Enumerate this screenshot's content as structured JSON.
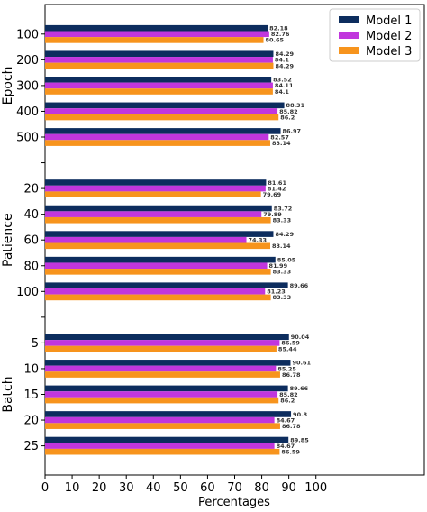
{
  "chart_data": {
    "type": "bar",
    "orientation": "horizontal",
    "xlabel": "Percentages",
    "xlim": [
      0,
      140
    ],
    "xticks": [
      0,
      10,
      20,
      30,
      40,
      50,
      60,
      70,
      80,
      90,
      100
    ],
    "legend": {
      "position": "top-right"
    },
    "series": [
      {
        "name": "Model 1",
        "color": "#0d2d5e"
      },
      {
        "name": "Model 2",
        "color": "#c136dd"
      },
      {
        "name": "Model 3",
        "color": "#f7941d"
      }
    ],
    "groups": [
      {
        "label": "Epoch",
        "categories": [
          "100",
          "200",
          "300",
          "400",
          "500"
        ],
        "values": [
          [
            82.18,
            82.76,
            80.65
          ],
          [
            84.29,
            84.1,
            84.29
          ],
          [
            83.52,
            84.11,
            84.1
          ],
          [
            88.31,
            85.82,
            86.2
          ],
          [
            86.97,
            82.57,
            83.14
          ]
        ]
      },
      {
        "label": "Patience",
        "categories": [
          "20",
          "40",
          "60",
          "80",
          "100"
        ],
        "values": [
          [
            81.61,
            81.42,
            79.69
          ],
          [
            83.72,
            79.89,
            83.33
          ],
          [
            84.29,
            74.33,
            83.14
          ],
          [
            85.05,
            81.99,
            83.33
          ],
          [
            89.66,
            81.23,
            83.33
          ]
        ]
      },
      {
        "label": "Batch",
        "categories": [
          "5",
          "10",
          "15",
          "20",
          "25"
        ],
        "values": [
          [
            90.04,
            86.59,
            85.44
          ],
          [
            90.61,
            85.25,
            86.78
          ],
          [
            89.66,
            85.82,
            86.2
          ],
          [
            90.8,
            84.67,
            86.78
          ],
          [
            89.85,
            84.67,
            86.59
          ]
        ]
      }
    ]
  }
}
